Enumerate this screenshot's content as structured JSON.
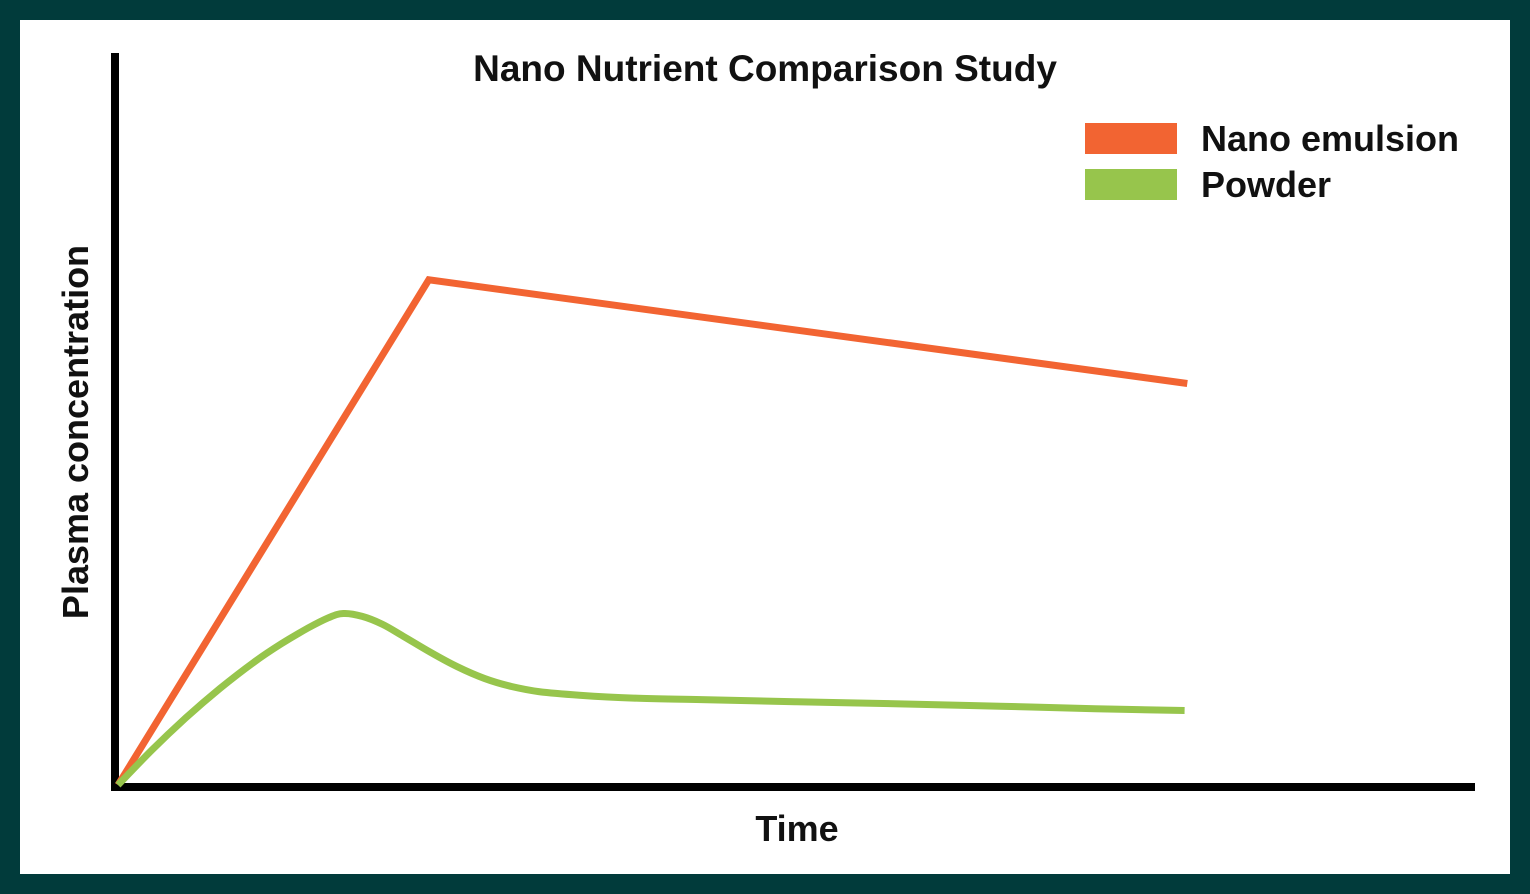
{
  "page": {
    "frame_color": "#013B3B",
    "background_color": "#FFFFFF",
    "text_color": "#111111",
    "axis_color": "#000000"
  },
  "chart_data": {
    "type": "line",
    "title": "Nano Nutrient Comparison Study",
    "xlabel": "Time",
    "ylabel": "Plasma concentration",
    "x_range": [
      0,
      10
    ],
    "y_range": [
      0,
      100
    ],
    "grid": false,
    "axis_ticks": false,
    "tick_labels": "none",
    "legend_position": "top-right",
    "series": [
      {
        "name": "Nano emulsion",
        "color": "#F26432",
        "smooth": false,
        "line_width": 7,
        "points": [
          [
            0,
            0
          ],
          [
            2.29,
            69.2
          ],
          [
            7.88,
            55.0
          ]
        ]
      },
      {
        "name": "Powder",
        "color": "#97C54C",
        "smooth": true,
        "line_width": 7,
        "points": [
          [
            0,
            0
          ],
          [
            0.25,
            4.8
          ],
          [
            0.5,
            9.2
          ],
          [
            0.75,
            13.2
          ],
          [
            1.0,
            16.8
          ],
          [
            1.2,
            19.3
          ],
          [
            1.4,
            21.5
          ],
          [
            1.55,
            22.9
          ],
          [
            1.66,
            23.5
          ],
          [
            1.8,
            23.1
          ],
          [
            1.95,
            22.0
          ],
          [
            2.1,
            20.4
          ],
          [
            2.3,
            18.2
          ],
          [
            2.5,
            16.2
          ],
          [
            2.7,
            14.6
          ],
          [
            2.9,
            13.5
          ],
          [
            3.1,
            12.8
          ],
          [
            3.4,
            12.3
          ],
          [
            3.8,
            11.9
          ],
          [
            4.3,
            11.7
          ],
          [
            5.0,
            11.4
          ],
          [
            5.8,
            11.1
          ],
          [
            6.5,
            10.8
          ],
          [
            7.2,
            10.45
          ],
          [
            7.86,
            10.2
          ]
        ]
      }
    ]
  }
}
